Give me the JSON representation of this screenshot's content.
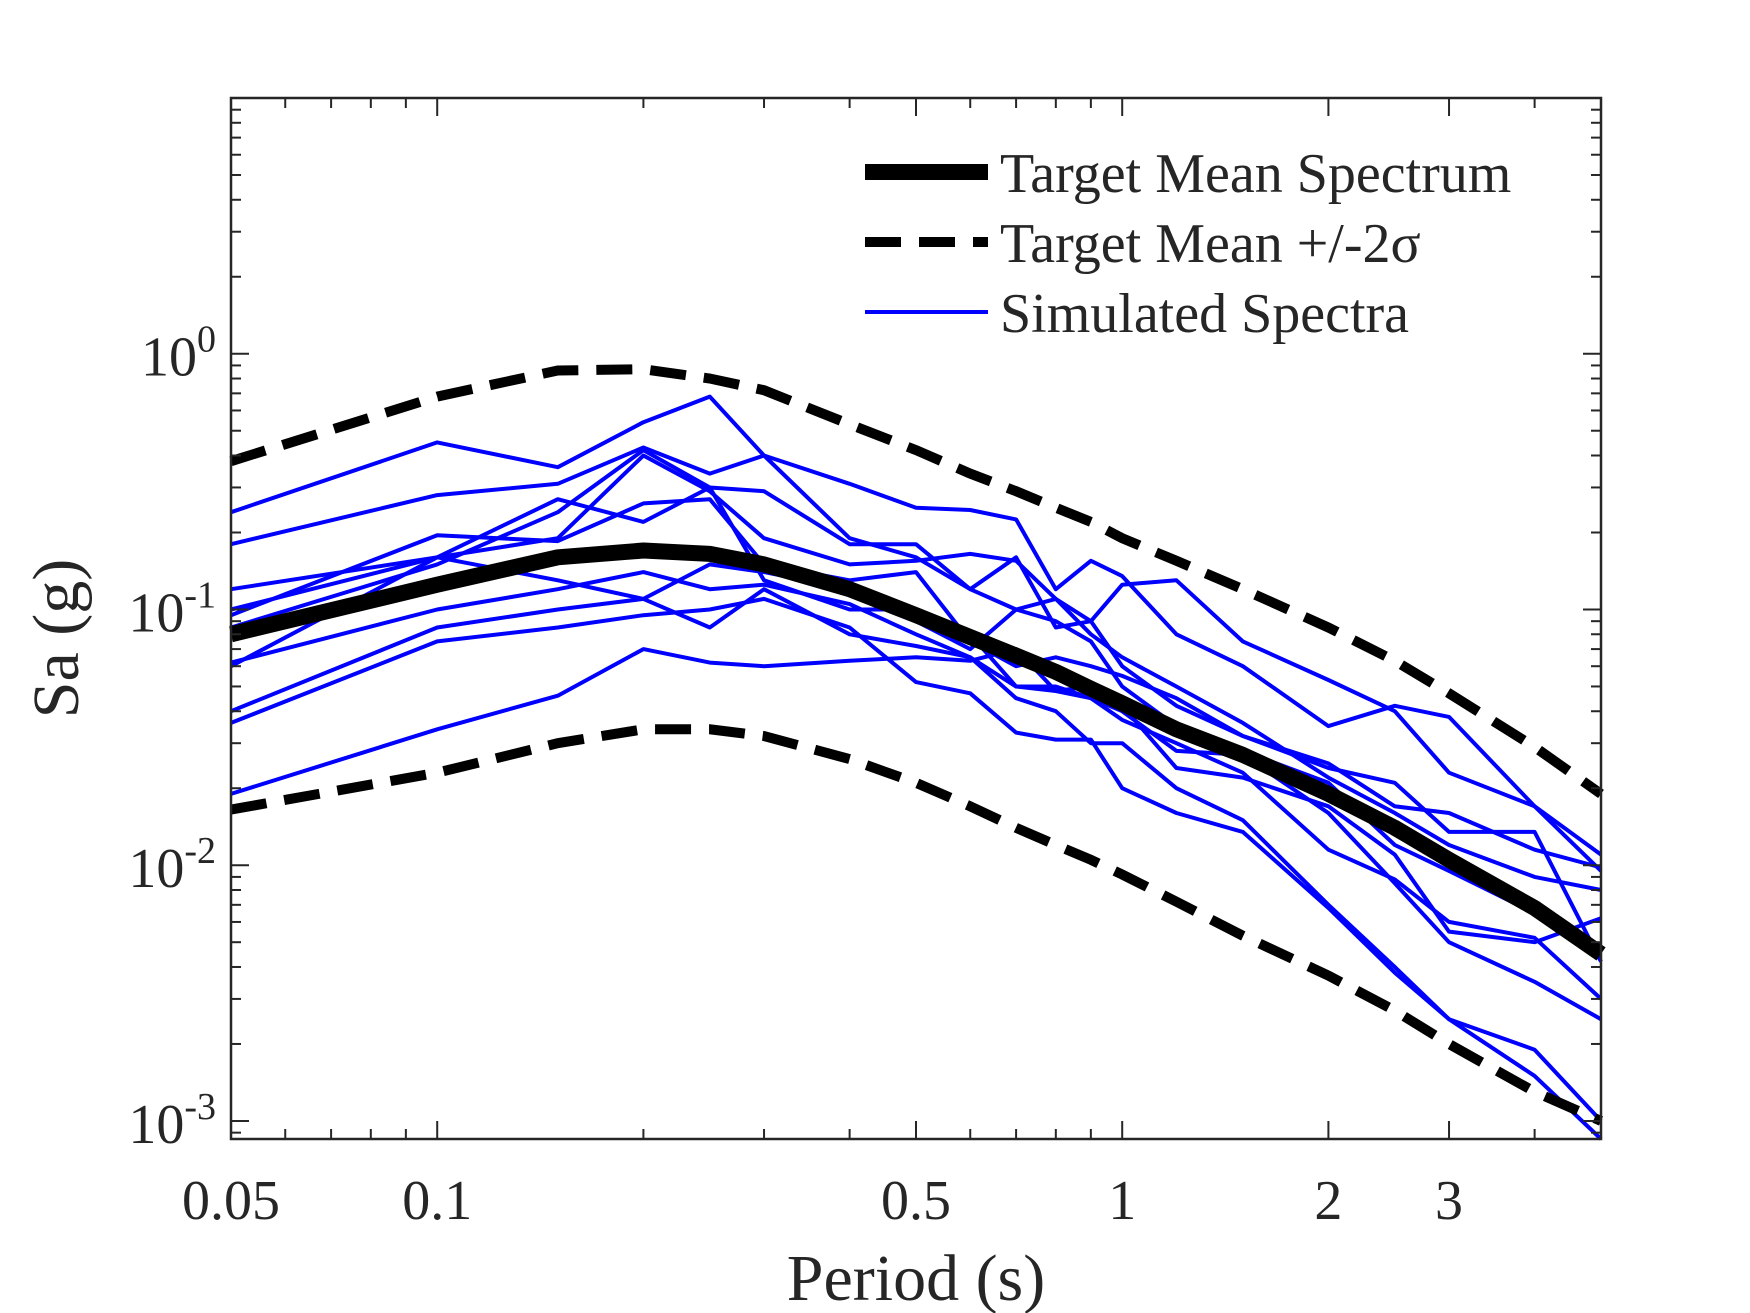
{
  "chart_data": {
    "type": "line",
    "xlabel": "Period (s)",
    "ylabel": "Sa (g)",
    "xscale": "log",
    "yscale": "log",
    "xlim": [
      0.05,
      5
    ],
    "ylim": [
      0.00085,
      10
    ],
    "xticks": [
      0.05,
      0.1,
      0.5,
      1,
      2,
      3
    ],
    "xtick_labels": [
      "0.05",
      "0.1",
      "0.5",
      "1",
      "2",
      "3"
    ],
    "yticks": [
      0.001,
      0.01,
      0.1,
      1
    ],
    "ytick_labels": [
      {
        "base": "10",
        "exp": "-3"
      },
      {
        "base": "10",
        "exp": "-2"
      },
      {
        "base": "10",
        "exp": "-1"
      },
      {
        "base": "10",
        "exp": "0"
      }
    ],
    "grid": false,
    "legend_placement": "top-right",
    "legend": [
      "Target Mean Spectrum",
      "Target Mean +/-2σ",
      "Simulated Spectra"
    ],
    "colors": {
      "target": "#000000",
      "simulated": "#0000ff",
      "text": "#262626"
    },
    "x": [
      0.05,
      0.1,
      0.15,
      0.2,
      0.25,
      0.3,
      0.4,
      0.5,
      0.6,
      0.7,
      0.8,
      0.9,
      1,
      1.2,
      1.5,
      2,
      2.5,
      3,
      4,
      5
    ],
    "target_mean": [
      0.08,
      0.125,
      0.16,
      0.17,
      0.165,
      0.15,
      0.12,
      0.095,
      0.078,
      0.066,
      0.057,
      0.049,
      0.043,
      0.034,
      0.027,
      0.019,
      0.014,
      0.0105,
      0.0068,
      0.0045
    ],
    "target_upper": [
      0.38,
      0.68,
      0.86,
      0.87,
      0.8,
      0.72,
      0.53,
      0.42,
      0.34,
      0.29,
      0.25,
      0.22,
      0.19,
      0.155,
      0.12,
      0.085,
      0.063,
      0.047,
      0.029,
      0.019
    ],
    "target_lower": [
      0.0165,
      0.023,
      0.03,
      0.034,
      0.034,
      0.032,
      0.026,
      0.021,
      0.017,
      0.014,
      0.012,
      0.0105,
      0.0092,
      0.0072,
      0.0053,
      0.0037,
      0.0027,
      0.002,
      0.0013,
      0.001
    ],
    "simulated": [
      [
        0.24,
        0.45,
        0.36,
        0.54,
        0.68,
        0.4,
        0.19,
        0.16,
        0.12,
        0.1,
        0.09,
        0.075,
        0.05,
        0.035,
        0.028,
        0.021,
        0.012,
        0.0095,
        0.0065,
        0.0045
      ],
      [
        0.18,
        0.28,
        0.31,
        0.43,
        0.34,
        0.4,
        0.31,
        0.25,
        0.245,
        0.225,
        0.12,
        0.155,
        0.135,
        0.08,
        0.06,
        0.035,
        0.042,
        0.038,
        0.017,
        0.0095
      ],
      [
        0.12,
        0.16,
        0.19,
        0.4,
        0.29,
        0.19,
        0.15,
        0.155,
        0.165,
        0.155,
        0.11,
        0.08,
        0.065,
        0.05,
        0.036,
        0.022,
        0.016,
        0.012,
        0.009,
        0.008
      ],
      [
        0.1,
        0.16,
        0.27,
        0.22,
        0.3,
        0.29,
        0.18,
        0.18,
        0.12,
        0.16,
        0.085,
        0.09,
        0.125,
        0.13,
        0.075,
        0.053,
        0.04,
        0.023,
        0.017,
        0.011
      ],
      [
        0.095,
        0.195,
        0.185,
        0.26,
        0.27,
        0.15,
        0.13,
        0.14,
        0.075,
        0.06,
        0.065,
        0.06,
        0.055,
        0.045,
        0.032,
        0.025,
        0.017,
        0.016,
        0.0115,
        0.0098
      ],
      [
        0.085,
        0.15,
        0.24,
        0.42,
        0.3,
        0.13,
        0.1,
        0.1,
        0.08,
        0.05,
        0.048,
        0.05,
        0.042,
        0.024,
        0.022,
        0.017,
        0.011,
        0.0055,
        0.005,
        0.0062
      ],
      [
        0.06,
        0.16,
        0.13,
        0.11,
        0.15,
        0.14,
        0.12,
        0.09,
        0.07,
        0.1,
        0.11,
        0.09,
        0.06,
        0.042,
        0.032,
        0.024,
        0.021,
        0.0135,
        0.0135,
        0.0042
      ],
      [
        0.062,
        0.1,
        0.12,
        0.14,
        0.12,
        0.125,
        0.105,
        0.08,
        0.065,
        0.05,
        0.05,
        0.045,
        0.04,
        0.028,
        0.027,
        0.016,
        0.0085,
        0.005,
        0.0035,
        0.0025
      ],
      [
        0.04,
        0.085,
        0.1,
        0.11,
        0.085,
        0.12,
        0.08,
        0.072,
        0.065,
        0.045,
        0.04,
        0.03,
        0.03,
        0.02,
        0.015,
        0.007,
        0.004,
        0.0025,
        0.0019,
        0.001
      ],
      [
        0.036,
        0.075,
        0.085,
        0.095,
        0.1,
        0.11,
        0.085,
        0.052,
        0.047,
        0.033,
        0.031,
        0.031,
        0.02,
        0.016,
        0.0135,
        0.0068,
        0.0038,
        0.0025,
        0.0015,
        0.00085
      ],
      [
        0.019,
        0.034,
        0.046,
        0.07,
        0.062,
        0.06,
        0.063,
        0.065,
        0.063,
        0.07,
        0.048,
        0.045,
        0.037,
        0.03,
        0.023,
        0.0115,
        0.0088,
        0.006,
        0.0052,
        0.003
      ]
    ]
  }
}
